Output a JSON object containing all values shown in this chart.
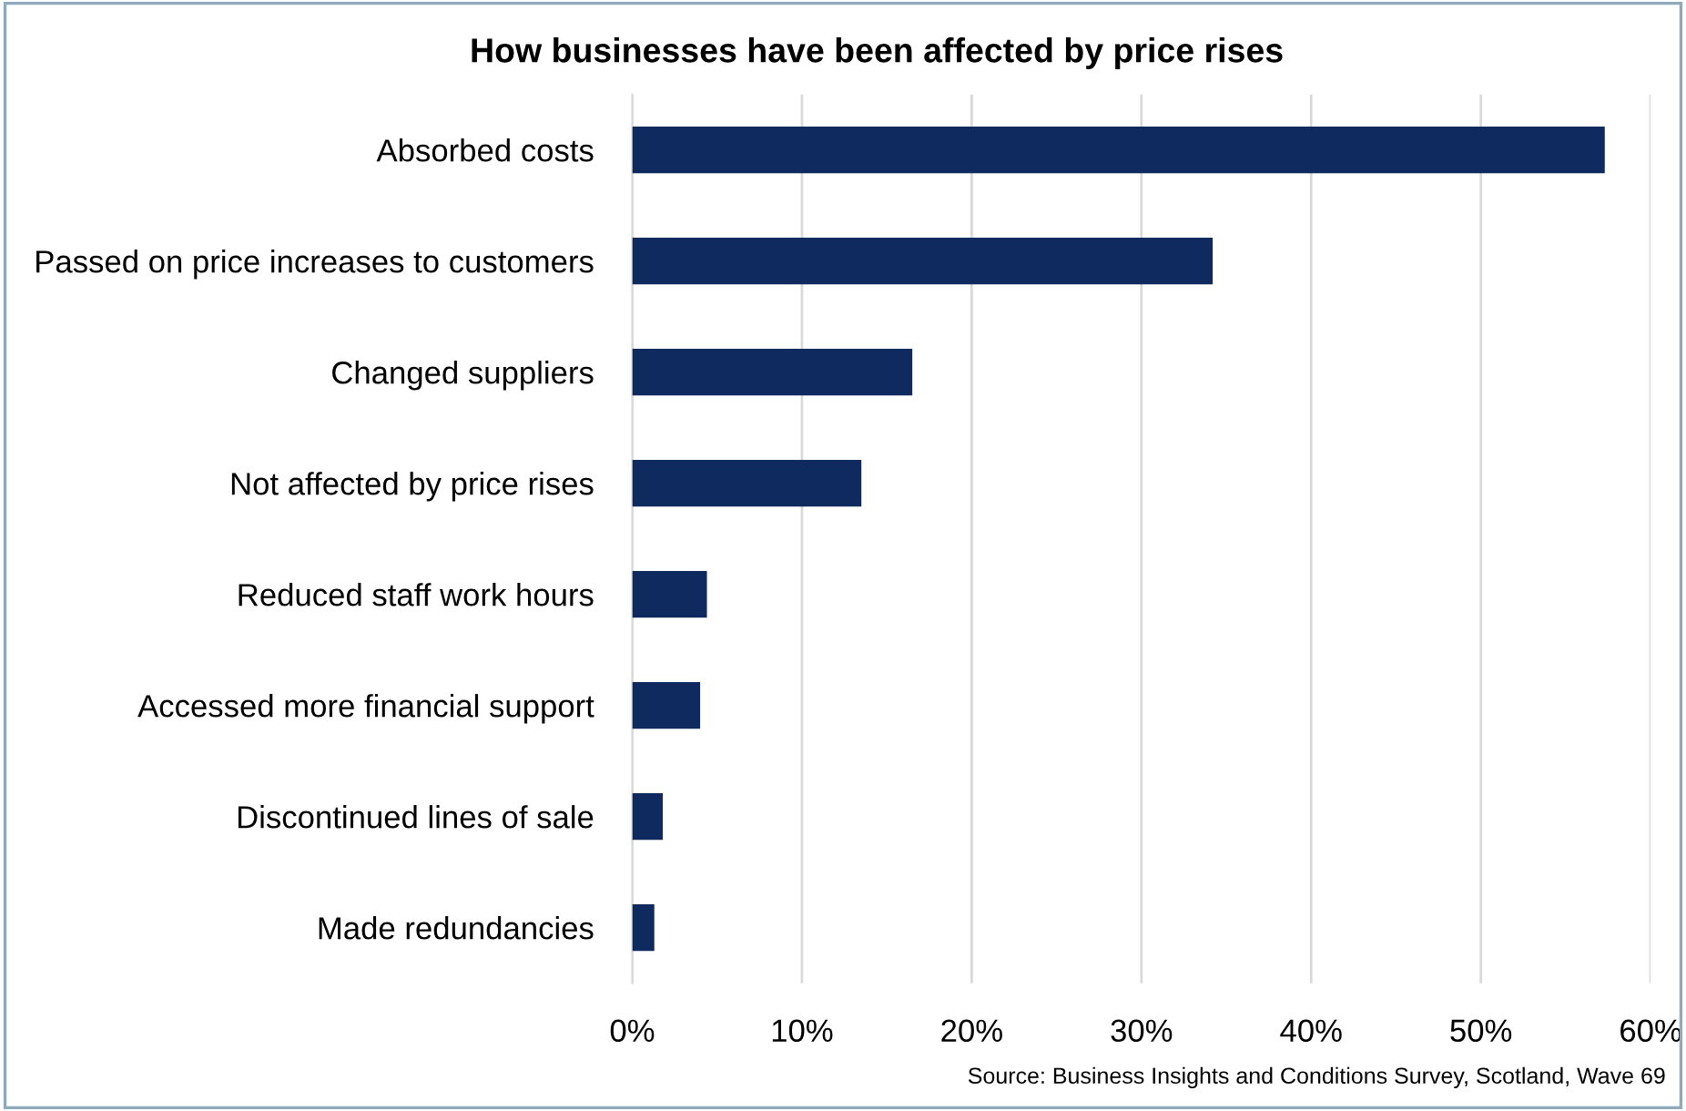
{
  "chart_data": {
    "type": "bar",
    "orientation": "horizontal",
    "title": "How businesses have been affected by price rises",
    "categories": [
      "Absorbed costs",
      "Passed on price increases to customers",
      "Changed suppliers",
      "Not affected by price rises",
      "Reduced staff work hours",
      "Accessed more financial support",
      "Discontinued lines of sale",
      "Made redundancies"
    ],
    "values": [
      57.3,
      34.2,
      16.5,
      13.5,
      4.4,
      4.0,
      1.8,
      1.3
    ],
    "color": "#0f2a5e",
    "xlim": [
      0,
      60
    ],
    "xticks": [
      {
        "value": 0,
        "label": "0%"
      },
      {
        "value": 10,
        "label": "10%"
      },
      {
        "value": 20,
        "label": "20%"
      },
      {
        "value": 30,
        "label": "30%"
      },
      {
        "value": 40,
        "label": "40%"
      },
      {
        "value": 50,
        "label": "50%"
      },
      {
        "value": 60,
        "label": "60%"
      }
    ],
    "grid": "x",
    "legend": false,
    "annotations": [
      "Source: Business Insights and Conditions Survey, Scotland, Wave 69"
    ]
  }
}
